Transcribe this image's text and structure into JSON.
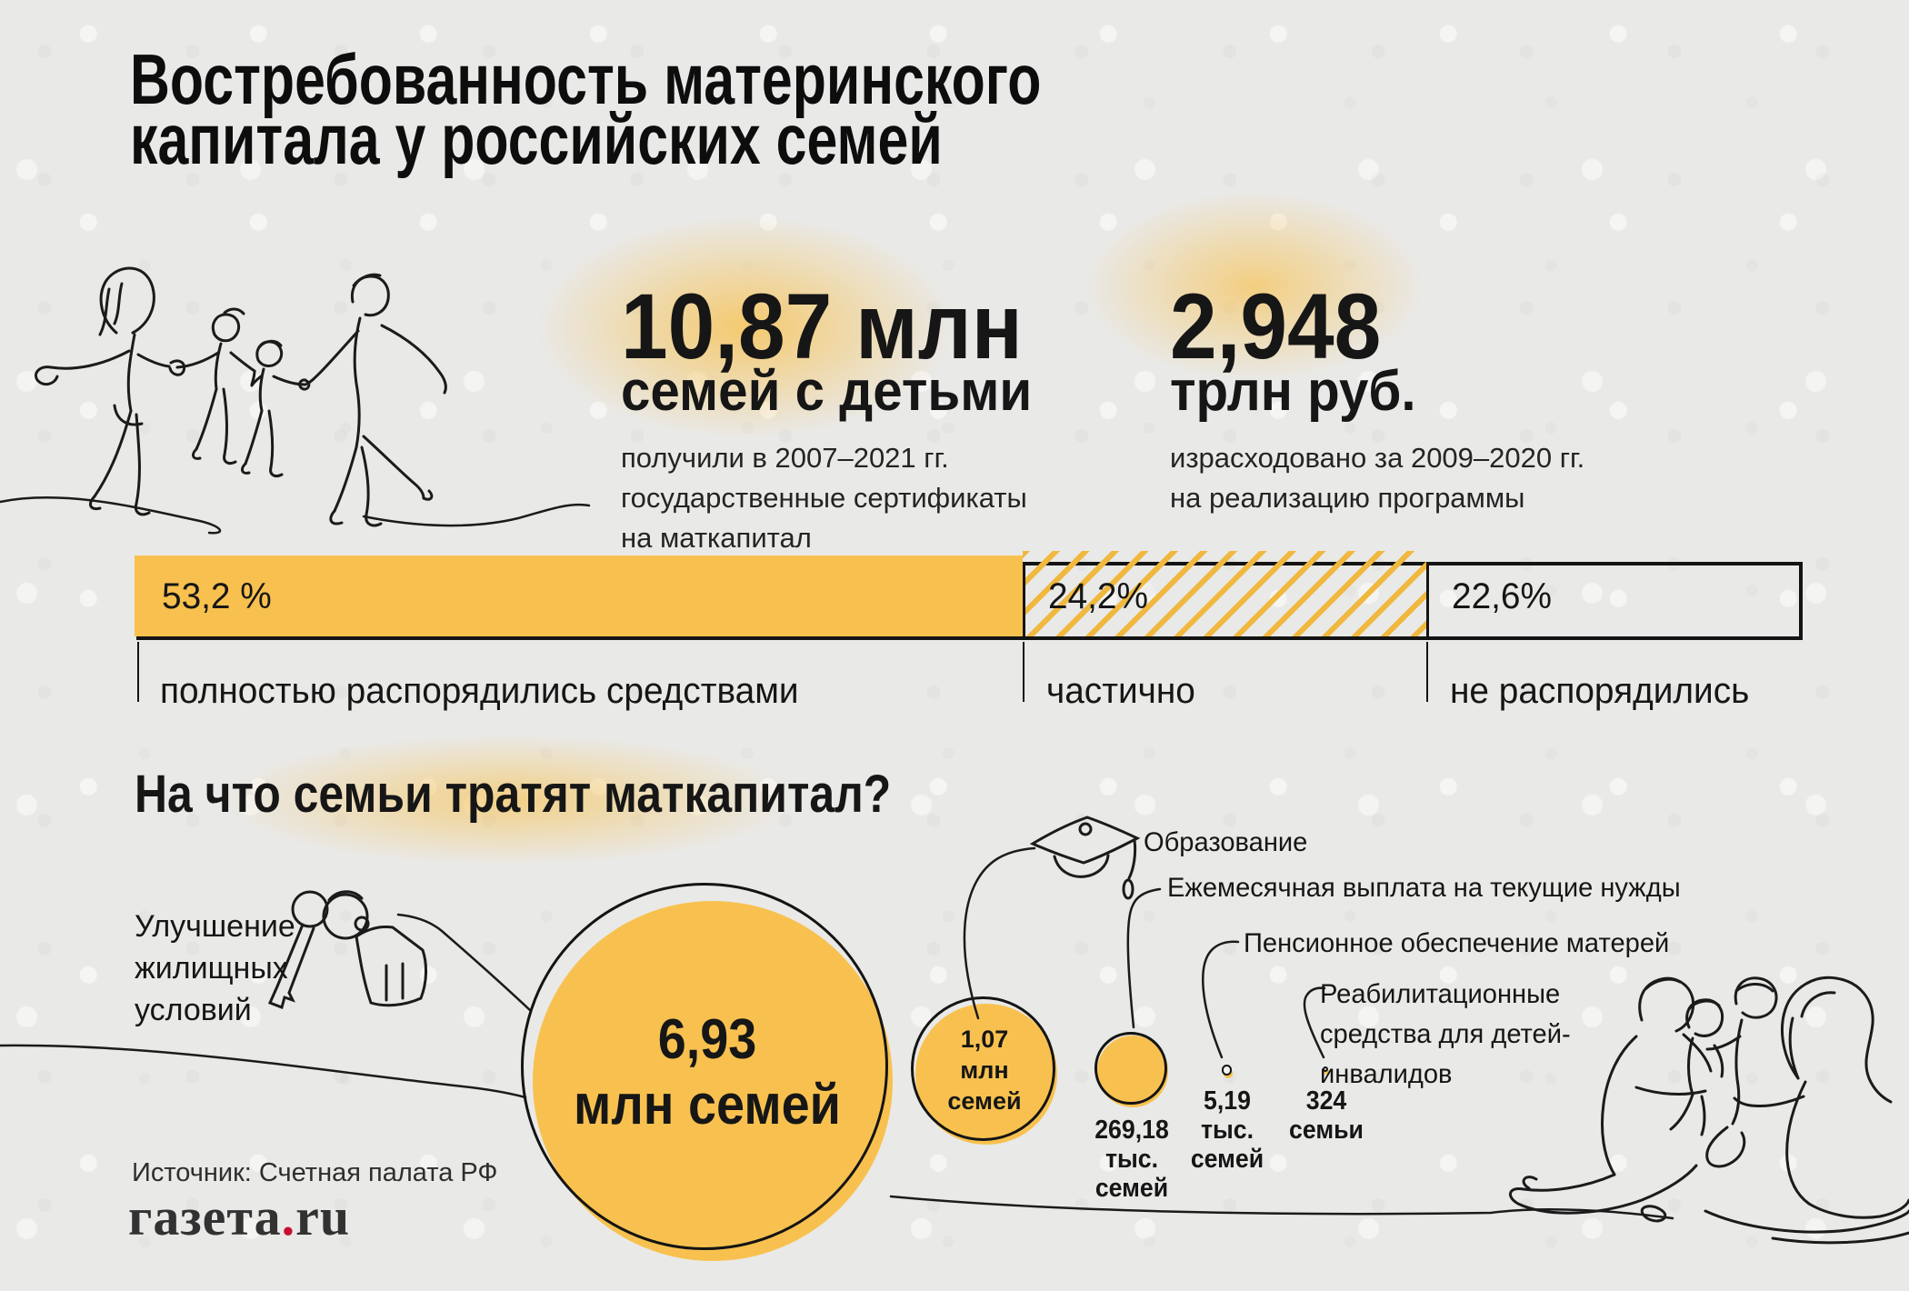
{
  "colors": {
    "accent": "#F8C14F",
    "hatch_stripe": "#F0B83E",
    "ink": "#161616",
    "paper": "#E9E9E7",
    "logo_dot": "#C8102E"
  },
  "icons": {
    "keys": "keys-line-art",
    "graduation_cap": "graduation-cap-line-art",
    "running_family": "family-running-line-art",
    "sitting_family": "family-sitting-line-art"
  },
  "title": {
    "line1": "Востребованность материнского",
    "line2": "капитала у российских семей"
  },
  "stats": [
    {
      "value": "10,87 млн",
      "unit": "семей с детьми",
      "desc": [
        "получили в 2007–2021 гг.",
        "государственные сертификаты",
        "на маткапитал"
      ]
    },
    {
      "value": "2,948",
      "unit": "трлн руб.",
      "desc": [
        "израсходовано за 2009–2020 гг.",
        "на реализацию программы"
      ]
    }
  ],
  "section2_heading": "На что семьи тратят маткапитал?",
  "spending_labels": {
    "housing": [
      "Улучшение",
      "жилищных",
      "условий"
    ],
    "big_circle": [
      "6,93",
      "млн семей"
    ],
    "education_bubble": [
      "1,07",
      "млн",
      "семей"
    ],
    "monthly_bubble": [
      "269,18",
      "тыс.",
      "семей"
    ],
    "pension_bubble": [
      "5,19",
      "тыс.",
      "семей"
    ],
    "rehab_bubble": [
      "324",
      "семьи"
    ],
    "education": "Образование",
    "monthly": "Ежемесячная выплата на текущие нужды",
    "pension": "Пенсионное обеспечение матерей",
    "rehab": [
      "Реабилитационные",
      "средства для детей-",
      "инвалидов"
    ]
  },
  "footer": {
    "source": "Источник: Счетная палата РФ",
    "logo": {
      "name": "газета",
      "dot": ".",
      "tld": "ru"
    }
  },
  "chart_data": [
    {
      "type": "bar",
      "stacked": true,
      "orientation": "horizontal",
      "unit": "%",
      "categories": [
        "полностью распорядились средствами",
        "частично",
        "не распорядились"
      ],
      "values": [
        53.2,
        24.2,
        22.6
      ],
      "value_labels": [
        "53,2 %",
        "24,2%",
        "22,6%"
      ],
      "segment_styles": [
        "solid",
        "hatched",
        "outline"
      ],
      "xlim": [
        0,
        100
      ],
      "grid": false,
      "legend": "none"
    },
    {
      "type": "bubble",
      "title": "На что семьи тратят маткапитал?",
      "unit": "семей",
      "items": [
        {
          "label": "Улучшение жилищных условий",
          "value": 6930000,
          "value_label": "6,93 млн семей"
        },
        {
          "label": "Образование",
          "value": 1070000,
          "value_label": "1,07 млн семей"
        },
        {
          "label": "Ежемесячная выплата на текущие нужды",
          "value": 269180,
          "value_label": "269,18 тыс. семей"
        },
        {
          "label": "Пенсионное обеспечение матерей",
          "value": 5190,
          "value_label": "5,19 тыс. семей"
        },
        {
          "label": "Реабилитационные средства для детей-инвалидов",
          "value": 324,
          "value_label": "324 семьи"
        }
      ]
    }
  ]
}
